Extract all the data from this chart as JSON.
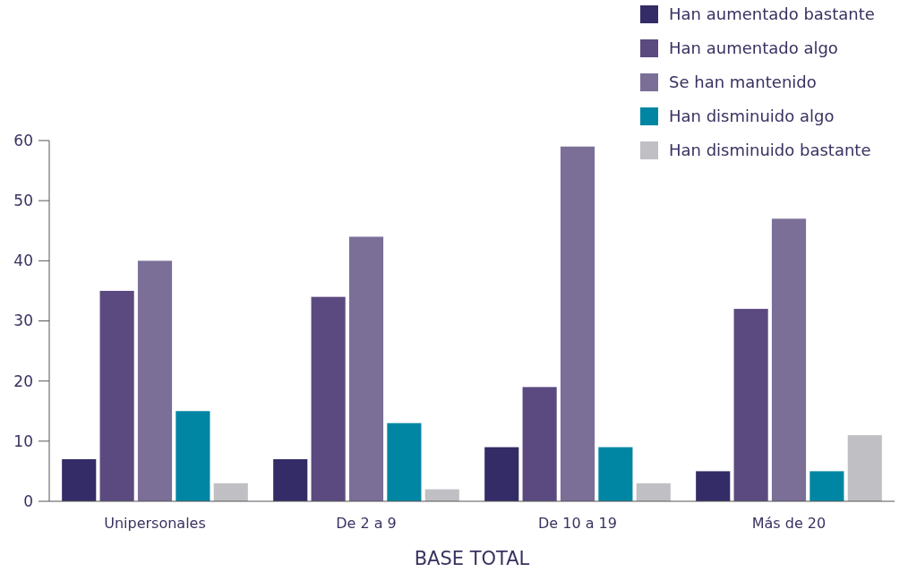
{
  "chart_data": {
    "type": "bar",
    "xlabel": "BASE TOTAL",
    "categories": [
      "Unipersonales",
      "De 2 a 9",
      "De 10 a 19",
      "Más de 20"
    ],
    "series": [
      {
        "name": "Han aumentado bastante",
        "color": "#332c66",
        "values": [
          7,
          7,
          9,
          5
        ]
      },
      {
        "name": "Han aumentado algo",
        "color": "#5b4a80",
        "values": [
          35,
          34,
          19,
          32
        ]
      },
      {
        "name": "Se han mantenido",
        "color": "#7b6f98",
        "values": [
          40,
          44,
          59,
          47
        ]
      },
      {
        "name": "Han disminuido algo",
        "color": "#0086a3",
        "values": [
          15,
          13,
          9,
          5
        ]
      },
      {
        "name": "Han disminuido bastante",
        "color": "#c0c0c4",
        "values": [
          3,
          2,
          3,
          11
        ]
      }
    ],
    "ylim": [
      0,
      60
    ],
    "yticks": [
      0,
      10,
      20,
      30,
      40,
      50,
      60
    ],
    "legend": "top right",
    "grid": false
  }
}
